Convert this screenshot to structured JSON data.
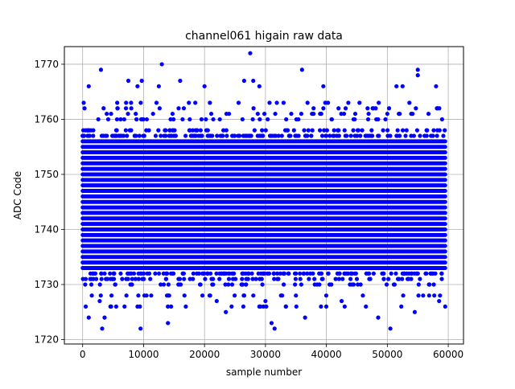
{
  "chart_data": {
    "type": "scatter",
    "title": "channel061 higain raw data",
    "xlabel": "sample number",
    "ylabel": "ADC Code",
    "xlim": [
      -3000,
      62500
    ],
    "ylim": [
      1719.2,
      1773.2
    ],
    "xticks": [
      0,
      10000,
      20000,
      30000,
      40000,
      50000,
      60000
    ],
    "xtick_labels": [
      "0",
      "10000",
      "20000",
      "30000",
      "40000",
      "50000",
      "60000"
    ],
    "yticks": [
      1720,
      1730,
      1740,
      1750,
      1760,
      1770
    ],
    "ytick_labels": [
      "1720",
      "1730",
      "1740",
      "1750",
      "1760",
      "1770"
    ],
    "grid": true,
    "marker_color": "#0000ff",
    "series": [
      {
        "x_range": [
          0,
          59500
        ],
        "dense_band": [
          1733,
          1756
        ],
        "sparse_levels": [
          1726,
          1728,
          1730,
          1731,
          1732,
          1757,
          1758,
          1760,
          1761,
          1762,
          1763
        ],
        "outliers": [
          {
            "x": 500,
            "y": 1726
          },
          {
            "x": 1000,
            "y": 1724
          },
          {
            "x": 1500,
            "y": 1728
          },
          {
            "x": 3000,
            "y": 1769
          },
          {
            "x": 3200,
            "y": 1722
          },
          {
            "x": 3600,
            "y": 1724
          },
          {
            "x": 2800,
            "y": 1727
          },
          {
            "x": 1000,
            "y": 1766
          },
          {
            "x": 5500,
            "y": 1726
          },
          {
            "x": 7500,
            "y": 1767
          },
          {
            "x": 9000,
            "y": 1726
          },
          {
            "x": 9500,
            "y": 1722
          },
          {
            "x": 9700,
            "y": 1767
          },
          {
            "x": 9000,
            "y": 1766
          },
          {
            "x": 12500,
            "y": 1766
          },
          {
            "x": 13000,
            "y": 1770
          },
          {
            "x": 14000,
            "y": 1723
          },
          {
            "x": 16000,
            "y": 1767
          },
          {
            "x": 20000,
            "y": 1766
          },
          {
            "x": 22000,
            "y": 1727
          },
          {
            "x": 23500,
            "y": 1725
          },
          {
            "x": 26500,
            "y": 1767
          },
          {
            "x": 27500,
            "y": 1772
          },
          {
            "x": 28000,
            "y": 1767
          },
          {
            "x": 29000,
            "y": 1766
          },
          {
            "x": 30000,
            "y": 1727
          },
          {
            "x": 31000,
            "y": 1723
          },
          {
            "x": 31500,
            "y": 1722
          },
          {
            "x": 36000,
            "y": 1769
          },
          {
            "x": 36500,
            "y": 1724
          },
          {
            "x": 39500,
            "y": 1766
          },
          {
            "x": 42500,
            "y": 1727
          },
          {
            "x": 43000,
            "y": 1726
          },
          {
            "x": 48500,
            "y": 1724
          },
          {
            "x": 50500,
            "y": 1722
          },
          {
            "x": 51500,
            "y": 1766
          },
          {
            "x": 52500,
            "y": 1766
          },
          {
            "x": 55000,
            "y": 1769
          },
          {
            "x": 55000,
            "y": 1768
          },
          {
            "x": 54500,
            "y": 1725
          },
          {
            "x": 58000,
            "y": 1766
          },
          {
            "x": 59500,
            "y": 1726
          },
          {
            "x": 58500,
            "y": 1727
          },
          {
            "x": 8000,
            "y": 1730
          },
          {
            "x": 35000,
            "y": 1728
          }
        ]
      }
    ]
  }
}
